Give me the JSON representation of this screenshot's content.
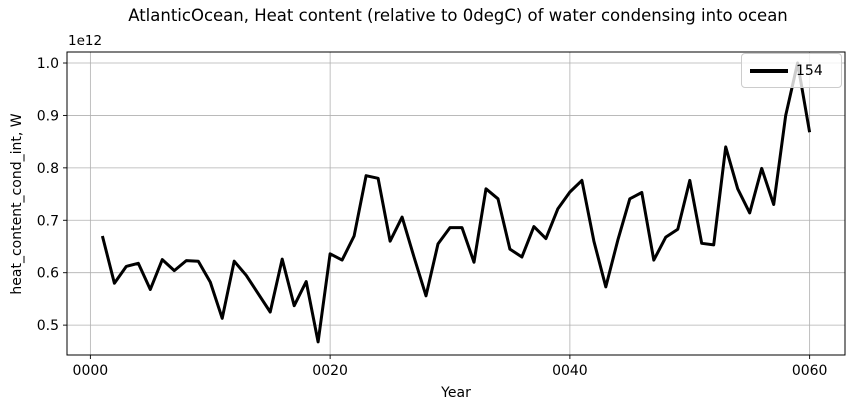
{
  "figure": {
    "background": "#ffffff"
  },
  "chart_data": {
    "type": "line",
    "title": "AtlanticOcean, Heat content (relative to 0degC) of water condensing into ocean",
    "xlabel": "Year",
    "ylabel": "heat_content_cond_int, W",
    "offset_text": "1e12",
    "y_unit_scale": 1000000000000.0,
    "grid": true,
    "legend": {
      "position": "upper right",
      "entries": [
        {
          "label": "154",
          "color": "#000000"
        }
      ]
    },
    "xlim": [
      -1.95,
      62.95
    ],
    "ylim": [
      0.443,
      1.021
    ],
    "xticks": {
      "positions": [
        0,
        20,
        40,
        60
      ],
      "labels": [
        "0000",
        "0020",
        "0040",
        "0060"
      ]
    },
    "yticks": {
      "positions": [
        0.5,
        0.6,
        0.7,
        0.8,
        0.9,
        1.0
      ],
      "labels": [
        "0.5",
        "0.6",
        "0.7",
        "0.8",
        "0.9",
        "1.0"
      ]
    },
    "x": [
      1,
      2,
      3,
      4,
      5,
      6,
      7,
      8,
      9,
      10,
      11,
      12,
      13,
      14,
      15,
      16,
      17,
      18,
      19,
      20,
      21,
      22,
      23,
      24,
      25,
      26,
      27,
      28,
      29,
      30,
      31,
      32,
      33,
      34,
      35,
      36,
      37,
      38,
      39,
      40,
      41,
      42,
      43,
      44,
      45,
      46,
      47,
      48,
      49,
      50,
      51,
      52,
      53,
      54,
      55,
      56,
      57,
      58,
      59,
      60
    ],
    "series": [
      {
        "name": "154",
        "color": "#000000",
        "linewidth": 3,
        "values": [
          0.67,
          0.58,
          0.612,
          0.618,
          0.568,
          0.625,
          0.604,
          0.623,
          0.622,
          0.582,
          0.513,
          0.622,
          0.595,
          0.56,
          0.525,
          0.626,
          0.537,
          0.583,
          0.468,
          0.636,
          0.624,
          0.67,
          0.785,
          0.78,
          0.66,
          0.706,
          0.63,
          0.556,
          0.655,
          0.686,
          0.686,
          0.62,
          0.76,
          0.741,
          0.645,
          0.63,
          0.688,
          0.665,
          0.722,
          0.754,
          0.776,
          0.66,
          0.573,
          0.662,
          0.741,
          0.753,
          0.624,
          0.668,
          0.683,
          0.776,
          0.656,
          0.653,
          0.84,
          0.76,
          0.714,
          0.799,
          0.73,
          0.9,
          1.0,
          0.868
        ]
      }
    ],
    "colors": {
      "grid": "#b0b0b0",
      "axes": "#000000",
      "text": "#000000",
      "legend_border": "#cccccc"
    }
  }
}
